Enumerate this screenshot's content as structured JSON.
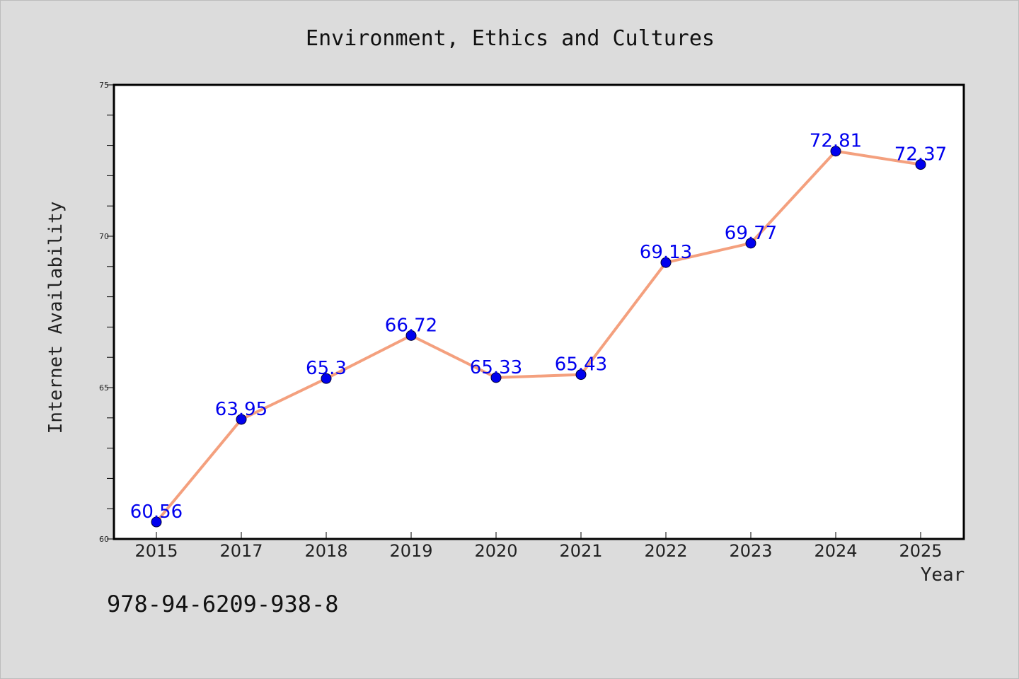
{
  "chart_data": {
    "type": "line",
    "title": "Environment, Ethics and Cultures",
    "xlabel": "Year",
    "ylabel": "Internet Availability",
    "categories": [
      "2015",
      "2017",
      "2018",
      "2019",
      "2020",
      "2021",
      "2022",
      "2023",
      "2024",
      "2025"
    ],
    "values": [
      60.56,
      63.95,
      65.3,
      66.72,
      65.33,
      65.43,
      69.13,
      69.77,
      72.81,
      72.37
    ],
    "data_labels": [
      "60.56",
      "63.95",
      "65.3",
      "66.72",
      "65.33",
      "65.43",
      "69.13",
      "69.77",
      "72.81",
      "72.37"
    ],
    "ylim": [
      60,
      75
    ],
    "yticks": [
      "60",
      "65",
      "70",
      "75"
    ],
    "grid": false,
    "line_color": "#f4a07e",
    "marker_color": "#0000ee",
    "label_color": "#0000ee",
    "background_color": "#dcdcdc",
    "plot_background_color": "#ffffff"
  },
  "footer": {
    "isbn": "978-94-6209-938-8"
  }
}
